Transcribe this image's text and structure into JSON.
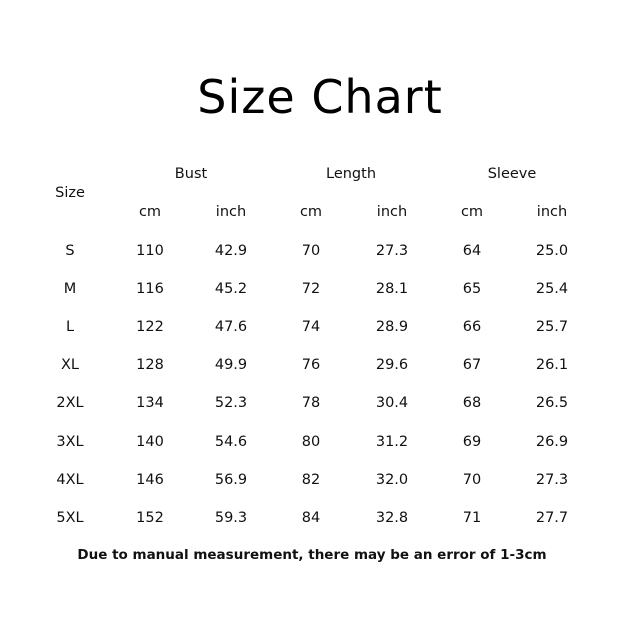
{
  "title": "Size Chart",
  "table": {
    "size_header": "Size",
    "groups": [
      "Bust",
      "Length",
      "Sleeve"
    ],
    "units": [
      "cm",
      "inch",
      "cm",
      "inch",
      "cm",
      "inch"
    ],
    "rows": [
      [
        "S",
        "110",
        "42.9",
        "70",
        "27.3",
        "64",
        "25.0"
      ],
      [
        "M",
        "116",
        "45.2",
        "72",
        "28.1",
        "65",
        "25.4"
      ],
      [
        "L",
        "122",
        "47.6",
        "74",
        "28.9",
        "66",
        "25.7"
      ],
      [
        "XL",
        "128",
        "49.9",
        "76",
        "29.6",
        "67",
        "26.1"
      ],
      [
        "2XL",
        "134",
        "52.3",
        "78",
        "30.4",
        "68",
        "26.5"
      ],
      [
        "3XL",
        "140",
        "54.6",
        "80",
        "31.2",
        "69",
        "26.9"
      ],
      [
        "4XL",
        "146",
        "56.9",
        "82",
        "32.0",
        "70",
        "27.3"
      ],
      [
        "5XL",
        "152",
        "59.3",
        "84",
        "32.8",
        "71",
        "27.7"
      ]
    ]
  },
  "note": "Due to manual measurement, there may be an error of 1-3cm"
}
